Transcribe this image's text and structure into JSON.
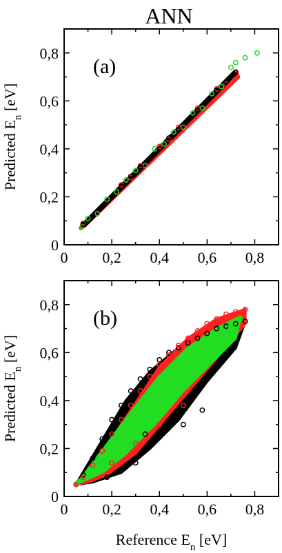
{
  "figure_title": "ANN",
  "colors": {
    "black": "#000000",
    "red": "#ff2020",
    "green": "#22dd22"
  },
  "chart_data": [
    {
      "type": "scatter",
      "panel_label": "(a)",
      "title": "ANN",
      "xlabel": "",
      "ylabel_main": "Predicted  E",
      "ylabel_sub": "n",
      "ylabel_unit": " [eV]",
      "xlim": [
        0,
        0.9
      ],
      "ylim": [
        0,
        0.9
      ],
      "xticks": [
        0,
        0.2,
        0.4,
        0.6,
        0.8
      ],
      "yticks": [
        0,
        0.2,
        0.4,
        0.6,
        0.8
      ],
      "xtick_labels": [
        "0",
        "0,2",
        "0,4",
        "0,6",
        "0,8"
      ],
      "ytick_labels": [
        "0",
        "0,2",
        "0,4",
        "0,6",
        "0,8"
      ],
      "marker": "open-circle",
      "series": [
        {
          "color": "#22dd22",
          "x": [
            0.075,
            0.1,
            0.14,
            0.18,
            0.22,
            0.26,
            0.3,
            0.34,
            0.38,
            0.42,
            0.46,
            0.5,
            0.54,
            0.58,
            0.62,
            0.66,
            0.7,
            0.72,
            0.76,
            0.81
          ],
          "y": [
            0.075,
            0.11,
            0.13,
            0.19,
            0.22,
            0.27,
            0.31,
            0.33,
            0.4,
            0.42,
            0.47,
            0.49,
            0.55,
            0.57,
            0.63,
            0.66,
            0.74,
            0.76,
            0.78,
            0.8
          ]
        },
        {
          "color": "#ff2020",
          "x": [
            0.08,
            0.12,
            0.16,
            0.2,
            0.24,
            0.28,
            0.32,
            0.36,
            0.4,
            0.44,
            0.48,
            0.52,
            0.56,
            0.6,
            0.64,
            0.68,
            0.72
          ],
          "y": [
            0.09,
            0.12,
            0.16,
            0.2,
            0.25,
            0.28,
            0.33,
            0.36,
            0.41,
            0.44,
            0.49,
            0.52,
            0.57,
            0.6,
            0.65,
            0.67,
            0.72
          ]
        },
        {
          "color": "#000000",
          "x": [
            0.08,
            0.12,
            0.16,
            0.2,
            0.24,
            0.28,
            0.32,
            0.36,
            0.4,
            0.44,
            0.48,
            0.52,
            0.56,
            0.6,
            0.64,
            0.68,
            0.72
          ],
          "y": [
            0.085,
            0.12,
            0.16,
            0.2,
            0.245,
            0.285,
            0.325,
            0.36,
            0.4,
            0.445,
            0.48,
            0.52,
            0.56,
            0.6,
            0.645,
            0.68,
            0.72
          ]
        }
      ]
    },
    {
      "type": "scatter",
      "panel_label": "(b)",
      "title": "",
      "xlabel_main": "Reference E",
      "xlabel_sub": "n",
      "xlabel_unit": " [eV]",
      "ylabel_main": "Predicted  E",
      "ylabel_sub": "n",
      "ylabel_unit": " [eV]",
      "xlim": [
        0,
        0.9
      ],
      "ylim": [
        0,
        0.9
      ],
      "xticks": [
        0,
        0.2,
        0.4,
        0.6,
        0.8
      ],
      "yticks": [
        0,
        0.2,
        0.4,
        0.6,
        0.8
      ],
      "xtick_labels": [
        "0",
        "0,2",
        "0,4",
        "0,6",
        "0,8"
      ],
      "ytick_labels": [
        "0",
        "0,2",
        "0,4",
        "0,6",
        "0,8"
      ],
      "marker": "open-circle",
      "series": [
        {
          "color": "#000000",
          "x": [
            0.05,
            0.08,
            0.12,
            0.16,
            0.2,
            0.24,
            0.28,
            0.32,
            0.36,
            0.4,
            0.44,
            0.48,
            0.52,
            0.56,
            0.6,
            0.64,
            0.68,
            0.72,
            0.76,
            0.3,
            0.34,
            0.22,
            0.18,
            0.26,
            0.58,
            0.5
          ],
          "y": [
            0.05,
            0.09,
            0.16,
            0.24,
            0.32,
            0.38,
            0.44,
            0.49,
            0.53,
            0.57,
            0.6,
            0.62,
            0.64,
            0.66,
            0.68,
            0.7,
            0.71,
            0.72,
            0.73,
            0.14,
            0.26,
            0.1,
            0.08,
            0.13,
            0.36,
            0.3
          ]
        },
        {
          "color": "#ff2020",
          "x": [
            0.05,
            0.08,
            0.12,
            0.16,
            0.2,
            0.24,
            0.28,
            0.32,
            0.36,
            0.4,
            0.44,
            0.48,
            0.52,
            0.56,
            0.6,
            0.64,
            0.68,
            0.72,
            0.76,
            0.2,
            0.3,
            0.4,
            0.5
          ],
          "y": [
            0.05,
            0.08,
            0.13,
            0.19,
            0.26,
            0.32,
            0.38,
            0.44,
            0.5,
            0.55,
            0.59,
            0.63,
            0.66,
            0.69,
            0.72,
            0.74,
            0.76,
            0.77,
            0.78,
            0.14,
            0.22,
            0.3,
            0.38
          ]
        },
        {
          "color": "#22dd22",
          "x": [
            0.06,
            0.1,
            0.14,
            0.18,
            0.22,
            0.26,
            0.3,
            0.34,
            0.38,
            0.42,
            0.46,
            0.5,
            0.54,
            0.58,
            0.62,
            0.66,
            0.7,
            0.74
          ],
          "y": [
            0.06,
            0.1,
            0.15,
            0.2,
            0.25,
            0.3,
            0.35,
            0.4,
            0.44,
            0.48,
            0.52,
            0.56,
            0.6,
            0.63,
            0.66,
            0.69,
            0.71,
            0.74
          ]
        }
      ]
    }
  ]
}
